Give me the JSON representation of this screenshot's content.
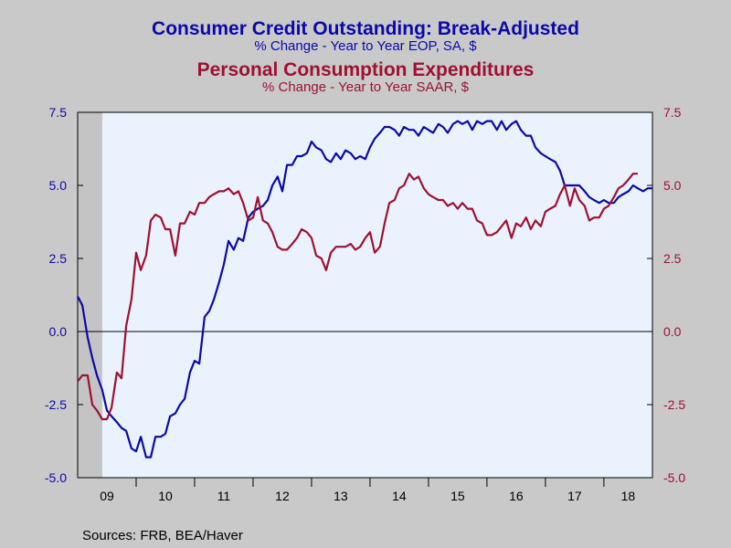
{
  "chart_data": {
    "type": "line",
    "title": "Consumer Credit Outstanding: Break-Adjusted",
    "subtitle": "% Change - Year to Year    EOP, SA, $",
    "title2": "Personal Consumption Expenditures",
    "subtitle2": "% Change - Year to Year    SAAR, $",
    "source": "Sources:  FRB, BEA/Haver",
    "x_tick_labels": [
      "09",
      "10",
      "11",
      "12",
      "13",
      "14",
      "15",
      "16",
      "17",
      "18"
    ],
    "x_range": [
      2009.0,
      2018.83
    ],
    "y_left_range": [
      -5.0,
      7.5
    ],
    "y_right_range": [
      -5.0,
      7.5
    ],
    "y_left_ticks": [
      "7.5",
      "5.0",
      "2.5",
      "0.0",
      "-2.5",
      "-5.0"
    ],
    "y_right_ticks": [
      "7.5",
      "5.0",
      "2.5",
      "0.0",
      "-2.5",
      "-5.0"
    ],
    "recession_shading": [
      2009.0,
      2009.42
    ],
    "zero_line": true,
    "grid": false,
    "colors": {
      "consumer_credit": "#0a0aa8",
      "pce": "#a01030",
      "plot_bg": "#eaf3fd",
      "recession": "#c4c4c4",
      "page_bg": "#c9c9c9"
    },
    "series": [
      {
        "axis": "left",
        "color": "#0a0aa8",
        "x": [
          2009.0,
          2009.08,
          2009.17,
          2009.25,
          2009.33,
          2009.42,
          2009.5,
          2009.58,
          2009.67,
          2009.75,
          2009.83,
          2009.92,
          2010.0,
          2010.08,
          2010.17,
          2010.25,
          2010.33,
          2010.42,
          2010.5,
          2010.58,
          2010.67,
          2010.75,
          2010.83,
          2010.92,
          2011.0,
          2011.08,
          2011.17,
          2011.25,
          2011.33,
          2011.42,
          2011.5,
          2011.58,
          2011.67,
          2011.75,
          2011.83,
          2011.92,
          2012.0,
          2012.08,
          2012.17,
          2012.25,
          2012.33,
          2012.42,
          2012.5,
          2012.58,
          2012.67,
          2012.75,
          2012.83,
          2012.92,
          2013.0,
          2013.08,
          2013.17,
          2013.25,
          2013.33,
          2013.42,
          2013.5,
          2013.58,
          2013.67,
          2013.75,
          2013.83,
          2013.92,
          2014.0,
          2014.08,
          2014.17,
          2014.25,
          2014.33,
          2014.42,
          2014.5,
          2014.58,
          2014.67,
          2014.75,
          2014.83,
          2014.92,
          2015.0,
          2015.08,
          2015.17,
          2015.25,
          2015.33,
          2015.42,
          2015.5,
          2015.58,
          2015.67,
          2015.75,
          2015.83,
          2015.92,
          2016.0,
          2016.08,
          2016.17,
          2016.25,
          2016.33,
          2016.42,
          2016.5,
          2016.58,
          2016.67,
          2016.75,
          2016.83,
          2016.92,
          2017.0,
          2017.08,
          2017.17,
          2017.25,
          2017.33,
          2017.42,
          2017.5,
          2017.58,
          2017.67,
          2017.75,
          2017.83,
          2017.92,
          2018.0,
          2018.08,
          2018.17,
          2018.25,
          2018.33,
          2018.42,
          2018.5,
          2018.58,
          2018.67,
          2018.75,
          2018.83
        ],
        "values": [
          1.2,
          0.9,
          -0.2,
          -0.9,
          -1.5,
          -2.0,
          -2.7,
          -2.9,
          -3.1,
          -3.3,
          -3.4,
          -4.0,
          -4.1,
          -3.6,
          -4.3,
          -4.3,
          -3.6,
          -3.6,
          -3.5,
          -2.9,
          -2.8,
          -2.5,
          -2.3,
          -1.4,
          -1.0,
          -1.1,
          0.5,
          0.7,
          1.1,
          1.7,
          2.3,
          3.1,
          2.8,
          3.2,
          3.1,
          3.9,
          4.1,
          4.2,
          4.3,
          4.5,
          5.0,
          5.3,
          4.8,
          5.7,
          5.7,
          6.0,
          6.0,
          6.1,
          6.5,
          6.3,
          6.2,
          5.9,
          5.8,
          6.1,
          5.9,
          6.2,
          6.1,
          5.9,
          6.0,
          5.9,
          6.3,
          6.6,
          6.8,
          7.0,
          7.0,
          6.9,
          6.7,
          7.0,
          6.9,
          6.9,
          6.7,
          7.0,
          6.9,
          6.8,
          7.1,
          7.0,
          6.8,
          7.1,
          7.2,
          7.1,
          7.2,
          6.9,
          7.2,
          7.1,
          7.2,
          7.2,
          6.9,
          7.2,
          6.9,
          7.1,
          7.2,
          6.9,
          6.7,
          6.7,
          6.3,
          6.1,
          6.0,
          5.9,
          5.8,
          5.5,
          5.0,
          5.0,
          5.0,
          5.0,
          4.8,
          4.6,
          4.5,
          4.4,
          4.5,
          4.4,
          4.4,
          4.6,
          4.7,
          4.8,
          5.0,
          4.9,
          4.8,
          4.9,
          4.9
        ]
      },
      {
        "axis": "right",
        "color": "#a01030",
        "x": [
          2009.0,
          2009.08,
          2009.17,
          2009.25,
          2009.33,
          2009.42,
          2009.5,
          2009.58,
          2009.67,
          2009.75,
          2009.83,
          2009.92,
          2010.0,
          2010.08,
          2010.17,
          2010.25,
          2010.33,
          2010.42,
          2010.5,
          2010.58,
          2010.67,
          2010.75,
          2010.83,
          2010.92,
          2011.0,
          2011.08,
          2011.17,
          2011.25,
          2011.33,
          2011.42,
          2011.5,
          2011.58,
          2011.67,
          2011.75,
          2011.83,
          2011.92,
          2012.0,
          2012.08,
          2012.17,
          2012.25,
          2012.33,
          2012.42,
          2012.5,
          2012.58,
          2012.67,
          2012.75,
          2012.83,
          2012.92,
          2013.0,
          2013.08,
          2013.17,
          2013.25,
          2013.33,
          2013.42,
          2013.5,
          2013.58,
          2013.67,
          2013.75,
          2013.83,
          2013.92,
          2014.0,
          2014.08,
          2014.17,
          2014.25,
          2014.33,
          2014.42,
          2014.5,
          2014.58,
          2014.67,
          2014.75,
          2014.83,
          2014.92,
          2015.0,
          2015.08,
          2015.17,
          2015.25,
          2015.33,
          2015.42,
          2015.5,
          2015.58,
          2015.67,
          2015.75,
          2015.83,
          2015.92,
          2016.0,
          2016.08,
          2016.17,
          2016.25,
          2016.33,
          2016.42,
          2016.5,
          2016.58,
          2016.67,
          2016.75,
          2016.83,
          2016.92,
          2017.0,
          2017.08,
          2017.17,
          2017.25,
          2017.33,
          2017.42,
          2017.5,
          2017.58,
          2017.67,
          2017.75,
          2017.83,
          2017.92,
          2018.0,
          2018.08,
          2018.17,
          2018.25,
          2018.33,
          2018.42,
          2018.5,
          2018.58
        ],
        "values": [
          -1.7,
          -1.5,
          -1.5,
          -2.5,
          -2.7,
          -3.0,
          -3.0,
          -2.6,
          -1.4,
          -1.6,
          0.2,
          1.1,
          2.7,
          2.1,
          2.6,
          3.8,
          4.0,
          3.9,
          3.5,
          3.5,
          2.6,
          3.7,
          3.7,
          4.1,
          4.0,
          4.4,
          4.4,
          4.6,
          4.7,
          4.8,
          4.8,
          4.9,
          4.7,
          4.8,
          4.4,
          3.8,
          3.9,
          4.6,
          3.8,
          3.7,
          3.4,
          2.9,
          2.8,
          2.8,
          3.0,
          3.2,
          3.5,
          3.4,
          3.2,
          2.6,
          2.5,
          2.1,
          2.7,
          2.9,
          2.9,
          2.9,
          3.0,
          2.8,
          2.9,
          3.2,
          3.4,
          2.7,
          2.9,
          3.7,
          4.4,
          4.5,
          4.9,
          5.0,
          5.4,
          5.2,
          5.3,
          4.9,
          4.7,
          4.6,
          4.5,
          4.5,
          4.3,
          4.4,
          4.2,
          4.4,
          4.2,
          4.2,
          3.8,
          3.7,
          3.3,
          3.3,
          3.4,
          3.6,
          3.8,
          3.2,
          3.7,
          3.6,
          3.9,
          3.5,
          3.8,
          3.6,
          4.1,
          4.2,
          4.3,
          4.7,
          5.0,
          4.3,
          4.9,
          4.5,
          4.3,
          3.8,
          3.9,
          3.9,
          4.2,
          4.3,
          4.6,
          4.9,
          5.0,
          5.2,
          5.4,
          5.4
        ]
      }
    ]
  }
}
